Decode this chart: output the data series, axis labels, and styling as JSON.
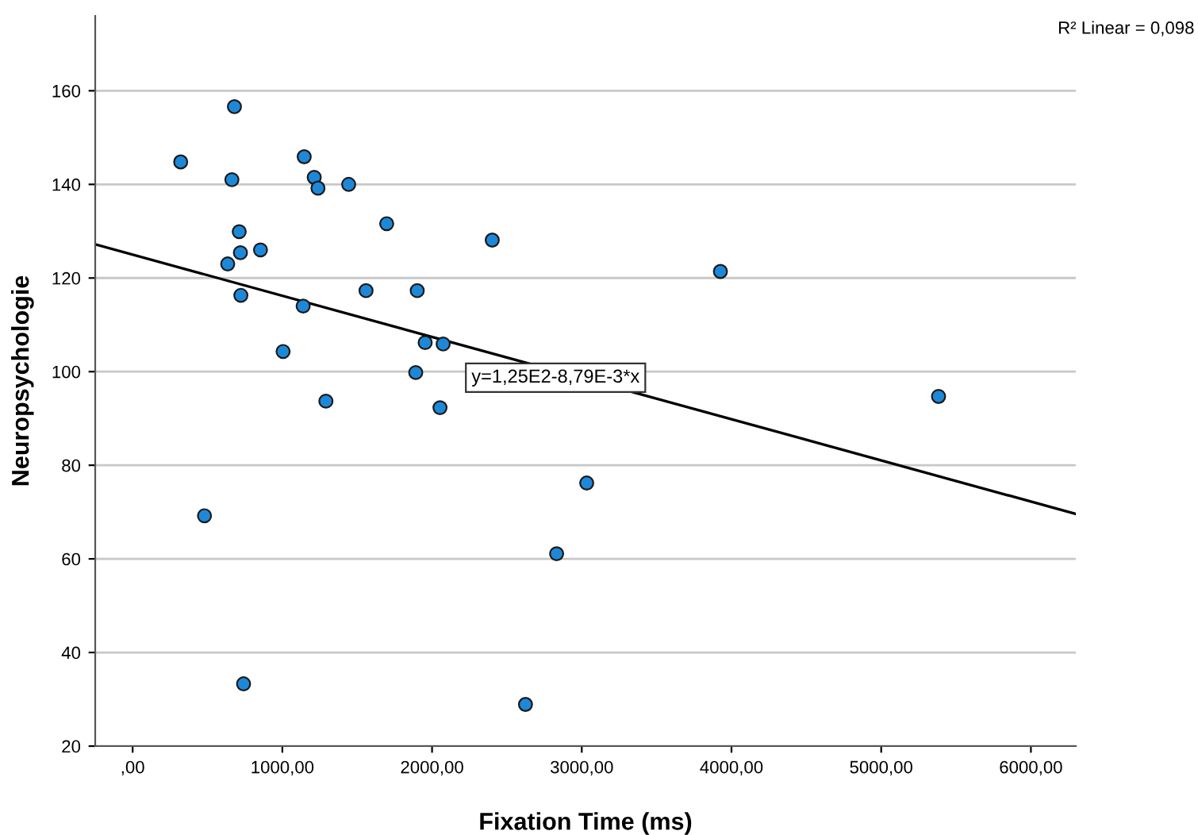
{
  "chart_data": {
    "type": "scatter",
    "xlabel": "Fixation Time (ms)",
    "ylabel": "Neuropsychologie",
    "xlim": [
      -250,
      6300
    ],
    "ylim": [
      20,
      176
    ],
    "xticks": [
      {
        "value": 0,
        "label": ",00"
      },
      {
        "value": 1000,
        "label": "1000,00"
      },
      {
        "value": 2000,
        "label": "2000,00"
      },
      {
        "value": 3000,
        "label": "3000,00"
      },
      {
        "value": 4000,
        "label": "4000,00"
      },
      {
        "value": 5000,
        "label": "5000,00"
      },
      {
        "value": 6000,
        "label": "6000,00"
      }
    ],
    "yticks": [
      20,
      40,
      60,
      80,
      100,
      120,
      140,
      160
    ],
    "grid": "y",
    "series": [
      {
        "color": "#1e88d8",
        "marker": "circle",
        "x": [
          680,
          321,
          663,
          1146,
          1213,
          1238,
          1443,
          1697,
          2402,
          712,
          720,
          854,
          635,
          723,
          1559,
          1901,
          1139,
          1954,
          2074,
          1005,
          1891,
          1291,
          2053,
          480,
          3033,
          2832,
          741,
          2624,
          3926,
          5383
        ],
        "values": [
          156.6,
          144.8,
          141.0,
          145.9,
          141.5,
          139.2,
          140.0,
          131.6,
          128.1,
          129.9,
          125.4,
          126.0,
          123.0,
          116.3,
          117.3,
          117.3,
          114.0,
          106.2,
          105.9,
          104.3,
          99.8,
          93.7,
          92.3,
          69.2,
          76.2,
          61.1,
          33.3,
          28.9,
          121.4,
          94.7
        ]
      },
      {
        "type": "line",
        "color": "#000000",
        "marker": "none",
        "line_style": "solid",
        "x": [
          -250,
          6300
        ],
        "values": [
          127.2,
          69.6
        ]
      }
    ],
    "annotations": [
      {
        "text": "y=1,25E2-8,79E-3*x",
        "x": 2825,
        "y": 98.7
      },
      "R² Linear = 0,098"
    ]
  }
}
